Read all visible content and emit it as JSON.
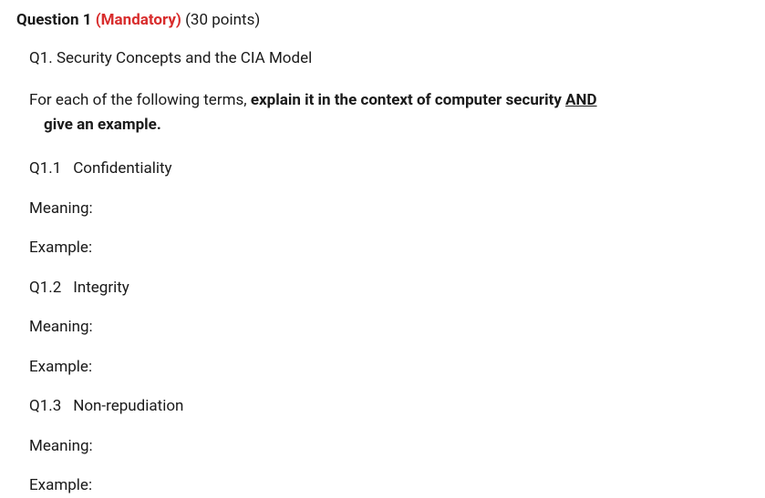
{
  "header": {
    "question_label": "Question 1",
    "mandatory_label": "(Mandatory)",
    "points_label": "(30 points)"
  },
  "title": "Q1. Security Concepts and the CIA Model",
  "instruction": {
    "prefix": "For each of the following terms, ",
    "bold_part": "explain it in the context of computer security ",
    "and_word": "AND",
    "bold_line2": "give an example."
  },
  "subquestions": [
    {
      "num": "Q1.1",
      "term": "Confidentiality"
    },
    {
      "num": "Q1.2",
      "term": "Integrity"
    },
    {
      "num": "Q1.3",
      "term": "Non-repudiation"
    }
  ],
  "labels": {
    "meaning": "Meaning:",
    "example": "Example:"
  },
  "colors": {
    "text": "#1a1a1a",
    "mandatory": "#d82c2c",
    "background": "#ffffff"
  },
  "typography": {
    "base_fontsize": 17,
    "header_fontsize": 17,
    "font_family": "sans-serif"
  }
}
